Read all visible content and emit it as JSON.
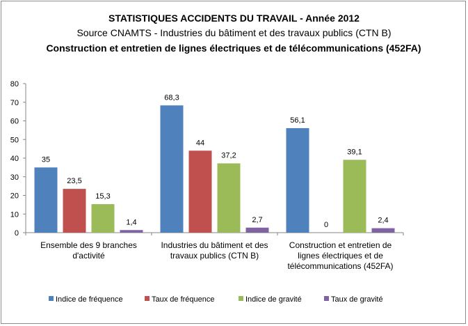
{
  "chart_data": {
    "type": "bar",
    "title": "STATISTIQUES ACCIDENTS DU TRAVAIL - Année 2012",
    "subtitle": "Source CNAMTS -  Industries du bâtiment et des travaux publics (CTN B)",
    "subtitle2": "Construction et entretien de lignes électriques et de télécommunications (452FA)",
    "categories": [
      [
        "Ensemble des 9 branches",
        "d'activité"
      ],
      [
        "Industries du bâtiment et des",
        "travaux publics (CTN B)"
      ],
      [
        "Construction et entretien de",
        "lignes électriques et de",
        "télécommunications (452FA)"
      ]
    ],
    "series": [
      {
        "name": "Indice de fréquence",
        "color": "#4f81bd",
        "values": [
          35,
          68.3,
          56.1
        ],
        "labels": [
          "35",
          "68,3",
          "56,1"
        ]
      },
      {
        "name": "Taux de fréquence",
        "color": "#c0504d",
        "values": [
          23.5,
          44,
          0
        ],
        "labels": [
          "23,5",
          "44",
          "0"
        ]
      },
      {
        "name": "Indice de gravité",
        "color": "#9bbb59",
        "values": [
          15.3,
          37.2,
          39.1
        ],
        "labels": [
          "15,3",
          "37,2",
          "39,1"
        ]
      },
      {
        "name": "Taux de gravité",
        "color": "#8064a2",
        "values": [
          1.4,
          2.7,
          2.4
        ],
        "labels": [
          "1,4",
          "2,7",
          "2,4"
        ]
      }
    ],
    "ylim": [
      0,
      80
    ],
    "yticks": [
      0,
      10,
      20,
      30,
      40,
      50,
      60,
      70,
      80
    ],
    "grid": false,
    "legend": "bottom"
  }
}
